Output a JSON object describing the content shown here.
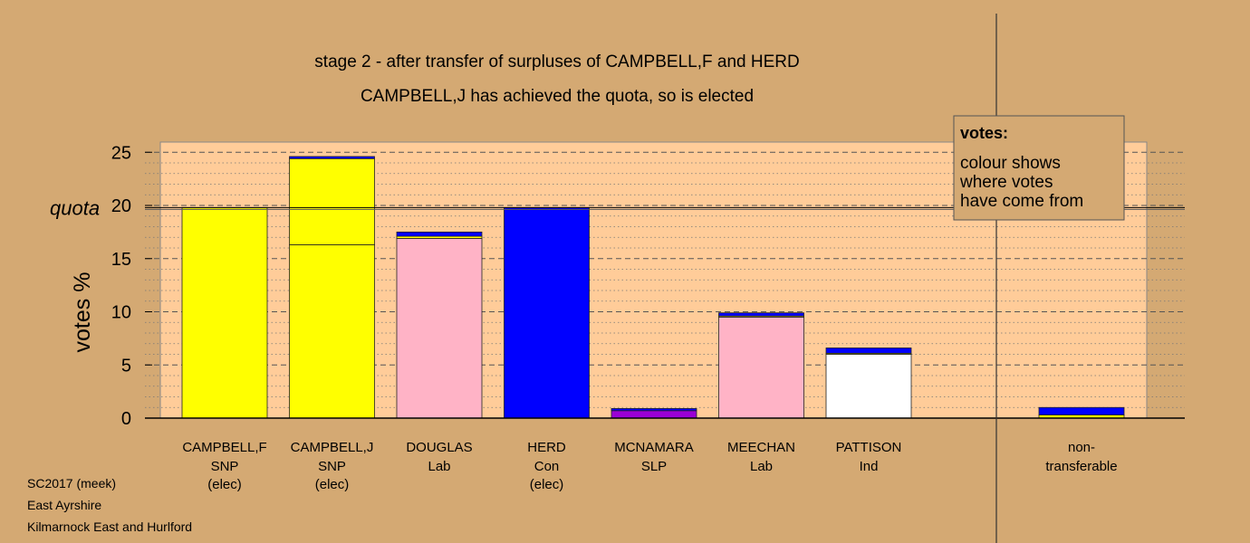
{
  "chart_data": {
    "type": "bar",
    "title": "stage 2 - after transfer of surpluses of CAMPBELL,F and HERD",
    "subtitle": "CAMPBELL,J has achieved the quota, so is elected",
    "ylabel": "votes %",
    "ylim": [
      0,
      26
    ],
    "yticks": [
      "0",
      "5",
      "10",
      "15",
      "20",
      "25"
    ],
    "quota_label": "quota",
    "quota": 19.8,
    "grid": true,
    "legend": {
      "title": "votes:",
      "text": [
        "colour shows",
        "where votes",
        "have come from"
      ],
      "placement": "top-right"
    },
    "candidates": [
      {
        "name": "CAMPBELL,F",
        "party": "SNP",
        "status": "(elec)",
        "segments": [
          {
            "value": 19.8,
            "color": "#ffff00"
          }
        ]
      },
      {
        "name": "CAMPBELL,J",
        "party": "SNP",
        "status": "(elec)",
        "segments": [
          {
            "value": 16.3,
            "color": "#ffff00"
          },
          {
            "value": 8.1,
            "color": "#ffff00"
          },
          {
            "value": 0.2,
            "color": "#0000ff"
          }
        ]
      },
      {
        "name": "DOUGLAS",
        "party": "Lab",
        "status": "",
        "segments": [
          {
            "value": 16.9,
            "color": "#ffb3c6"
          },
          {
            "value": 0.2,
            "color": "#ffff00"
          },
          {
            "value": 0.4,
            "color": "#0000ff"
          }
        ]
      },
      {
        "name": "HERD",
        "party": "Con",
        "status": "(elec)",
        "segments": [
          {
            "value": 19.8,
            "color": "#0000ff"
          }
        ]
      },
      {
        "name": "MCNAMARA",
        "party": "SLP",
        "status": "",
        "segments": [
          {
            "value": 0.7,
            "color": "#9b00d6"
          },
          {
            "value": 0.2,
            "color": "#0000ff"
          }
        ]
      },
      {
        "name": "MEECHAN",
        "party": "Lab",
        "status": "",
        "segments": [
          {
            "value": 9.5,
            "color": "#ffb3c6"
          },
          {
            "value": 0.1,
            "color": "#ffff00"
          },
          {
            "value": 0.3,
            "color": "#0000ff"
          }
        ]
      },
      {
        "name": "PATTISON",
        "party": "Ind",
        "status": "",
        "segments": [
          {
            "value": 6.0,
            "color": "#ffffff"
          },
          {
            "value": 0.1,
            "color": "#ffff00"
          },
          {
            "value": 0.5,
            "color": "#0000ff"
          }
        ]
      }
    ],
    "nontransferable": {
      "label1": "non-",
      "label2": "transferable",
      "segments": [
        {
          "value": 0.3,
          "color": "#ffff00"
        },
        {
          "value": 0.7,
          "color": "#0000ff"
        }
      ]
    }
  },
  "footer": {
    "line1": "SC2017 (meek)",
    "line2": "East Ayrshire",
    "line3": "Kilmarnock East and Hurlford"
  },
  "colors": {
    "background": "#d4a973",
    "plot": "#ffcc99",
    "legend_box": "#d4a973"
  }
}
